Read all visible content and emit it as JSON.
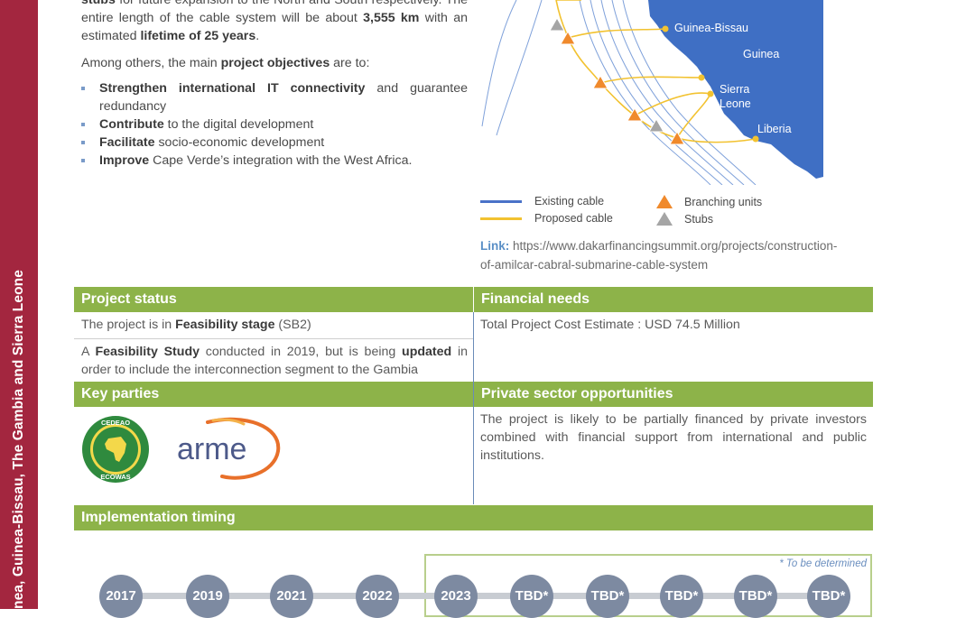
{
  "sidebar": {
    "text": "nea, Guinea-Bissau, The Gambia and Sierra Leone"
  },
  "intro": {
    "line1_bold": "stubs",
    "line1_rest": " for future expansion to the North and South respectively. The entire length of the cable system will be about ",
    "length": "3,555 km",
    "line1_mid": " with an estimated ",
    "lifetime": "lifetime of 25 years",
    "line1_end": ".",
    "objectives_pre": "Among others, the main ",
    "objectives_bold": "project objectives",
    "objectives_post": " are to:",
    "objectives": [
      {
        "bold": "Strengthen international IT connectivity",
        "rest": " and guarantee redundancy"
      },
      {
        "bold": "Contribute",
        "rest": " to the digital development"
      },
      {
        "bold": "Facilitate",
        "rest": " socio-economic development"
      },
      {
        "bold": "Improve",
        "rest": " Cape Verde’s integration with the West Africa."
      }
    ]
  },
  "map": {
    "labels": [
      "Guinea-Bissau",
      "Guinea",
      "Sierra",
      "Leone",
      "Liberia"
    ],
    "colors": {
      "land": "#3f6fc4",
      "existing": "#4a72c8",
      "proposed": "#f2c230",
      "branch": "#f08a2c",
      "stub": "#a5a5a5"
    }
  },
  "legend": {
    "existing": "Existing cable",
    "proposed": "Proposed cable",
    "branching": "Branching units",
    "stubs": "Stubs"
  },
  "link": {
    "label": "Link:",
    "url_line1": " https://www.dakarfinancingsummit.org/projects/construction-",
    "url_line2": "of-amilcar-cabral-submarine-cable-system"
  },
  "project_status": {
    "header": "Project status",
    "p1_pre": "The project is in ",
    "p1_bold": "Feasibility stage",
    "p1_post": " (SB2)",
    "p2_pre": "A ",
    "p2_bold1": "Feasibility Study",
    "p2_mid": " conducted in 2019, but is being ",
    "p2_bold2": "updated",
    "p2_post": " in order to include the interconnection segment to the Gambia"
  },
  "financial_needs": {
    "header": "Financial needs",
    "text": "Total Project Cost Estimate : USD 74.5 Million"
  },
  "key_parties": {
    "header": "Key parties",
    "ecowas_top": "CEDEAO",
    "ecowas_bottom": "ECOWAS",
    "arme": "arme"
  },
  "private_sector": {
    "header": "Private sector opportunities",
    "text": "The project is likely to be partially financed by private investors combined with financial support from international and public institutions."
  },
  "implementation": {
    "header": "Implementation timing",
    "note": "* To be determined",
    "years": [
      "2017",
      "2019",
      "2021",
      "2022",
      "2023",
      "TBD*",
      "TBD*",
      "TBD*",
      "TBD*",
      "TBD*"
    ]
  }
}
